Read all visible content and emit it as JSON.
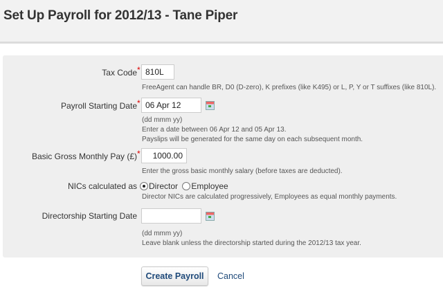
{
  "header": {
    "title": "Set Up Payroll for 2012/13 - Tane Piper"
  },
  "form": {
    "tax_code": {
      "label": "Tax Code",
      "required": "*",
      "value": "810L",
      "help": "FreeAgent can handle BR, D0 (D-zero), K prefixes (like K495) or L, P, Y or T suffixes (like 810L)."
    },
    "payroll_start": {
      "label": "Payroll Starting Date",
      "required": "*",
      "value": "06 Apr 12",
      "help": [
        "(dd mmm yy)",
        "Enter a date between 06 Apr 12 and 05 Apr 13.",
        "Payslips will be generated for the same day on each subsequent month."
      ],
      "icon": "calendar-icon"
    },
    "gross_pay": {
      "label": "Basic Gross Monthly Pay (£)",
      "required": "*",
      "value": "1000.00",
      "help": "Enter the gross basic monthly salary (before taxes are deducted)."
    },
    "nics": {
      "label": "NICs calculated as",
      "options": [
        "Director",
        "Employee"
      ],
      "selected": "Director",
      "help": "Director NICs are calculated progressively, Employees as equal monthly payments."
    },
    "directorship_start": {
      "label": "Directorship Starting Date",
      "value": "",
      "help": [
        "(dd mmm yy)",
        "Leave blank unless the directorship started during the 2012/13 tax year."
      ],
      "icon": "calendar-icon"
    }
  },
  "actions": {
    "submit": "Create Payroll",
    "cancel": "Cancel"
  },
  "colors": {
    "required": "#dd0000",
    "link": "#1f4a7a"
  }
}
